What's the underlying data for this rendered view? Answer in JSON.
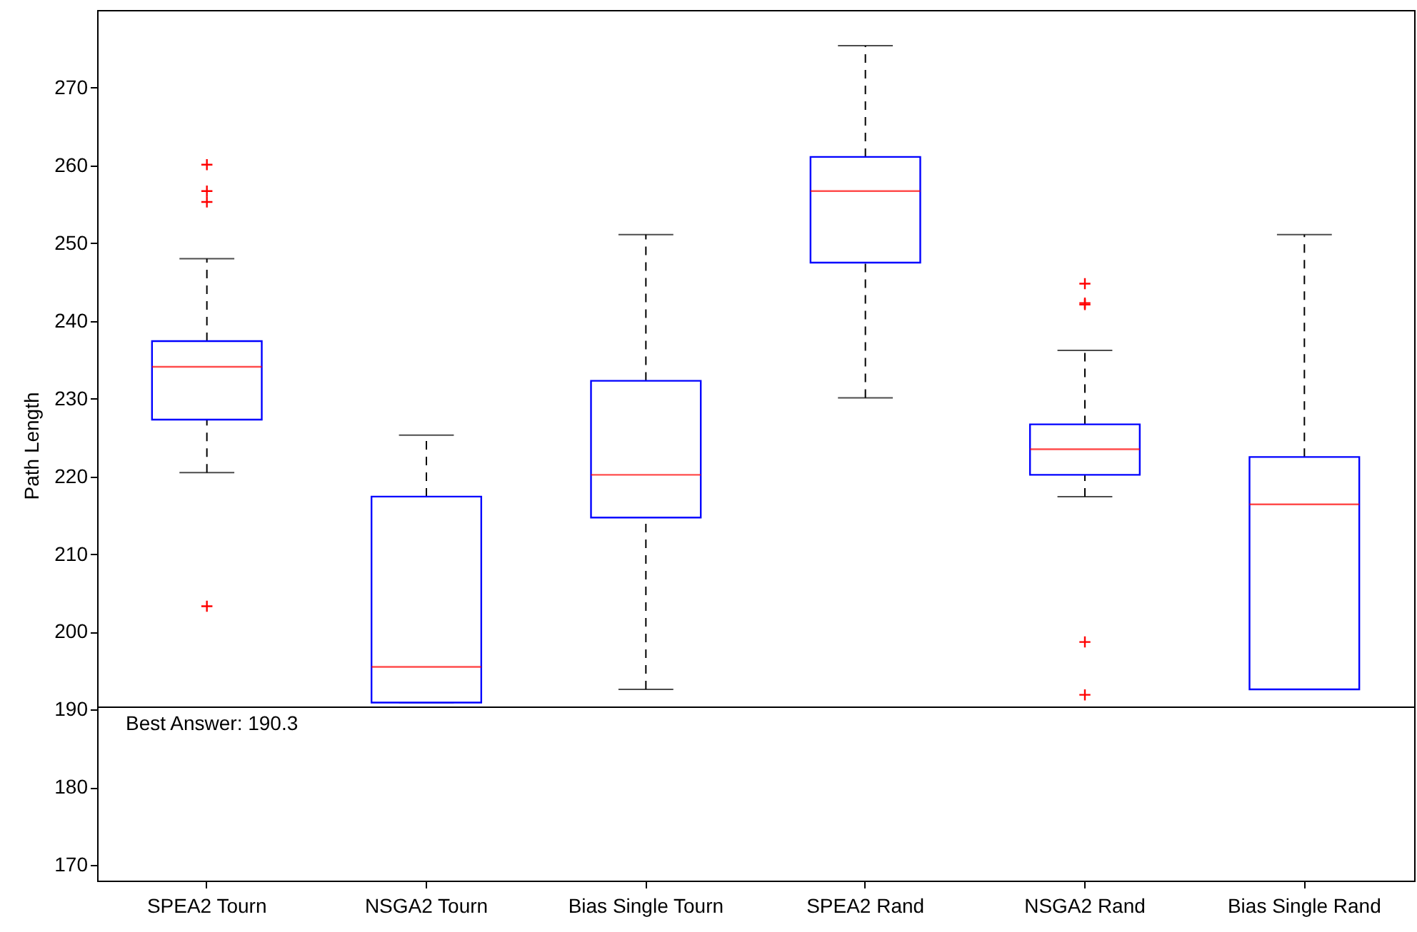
{
  "chart_data": {
    "type": "box",
    "ylabel": "Path Length",
    "categories": [
      "SPEA2 Tourn",
      "NSGA2 Tourn",
      "Bias Single Tourn",
      "SPEA2 Rand",
      "NSGA2 Rand",
      "Bias Single Rand"
    ],
    "ylim": [
      168,
      280
    ],
    "yticks": [
      170,
      180,
      190,
      200,
      210,
      220,
      230,
      240,
      250,
      260,
      270
    ],
    "series": [
      {
        "color": "#0000ff",
        "boxes": [
          {
            "low": 220.5,
            "q1": 227.3,
            "median": 234.1,
            "q3": 237.4,
            "high": 248.0,
            "outliers": [
              260.1,
              256.7,
              255.3,
              203.3
            ]
          },
          {
            "low": 190.9,
            "q1": 190.9,
            "median": 195.5,
            "q3": 217.4,
            "high": 225.3
          },
          {
            "low": 192.6,
            "q1": 214.7,
            "median": 220.2,
            "q3": 232.3,
            "high": 251.1
          },
          {
            "low": 230.1,
            "q1": 247.5,
            "median": 256.7,
            "q3": 261.1,
            "high": 275.4
          },
          {
            "low": 217.4,
            "q1": 220.2,
            "median": 223.5,
            "q3": 226.7,
            "high": 236.2,
            "outliers": [
              244.8,
              242.3,
              242.1,
              198.7,
              191.9
            ]
          },
          {
            "low": 192.6,
            "q1": 192.6,
            "median": 216.4,
            "q3": 222.5,
            "high": 251.1
          }
        ]
      }
    ],
    "ref_lines": [
      {
        "axis": "y",
        "value": 190.3,
        "label": "Best Answer: 190.3"
      }
    ]
  }
}
